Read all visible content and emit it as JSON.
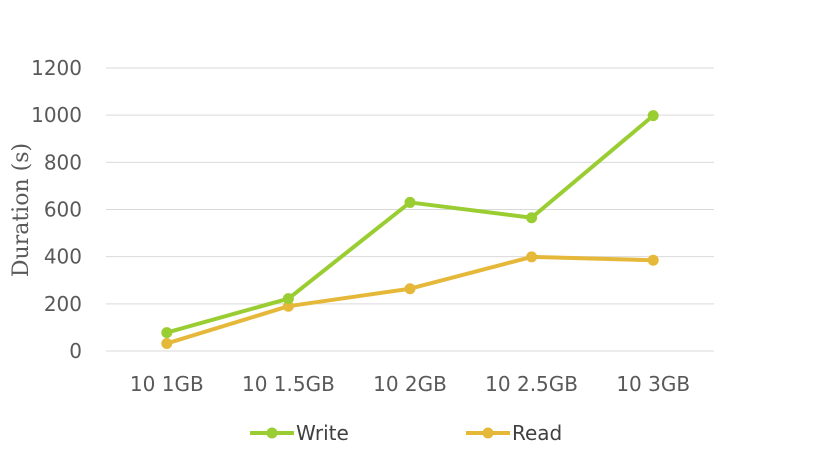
{
  "chart_data": {
    "type": "line",
    "title": "",
    "xlabel": "",
    "ylabel": "Duration (s)",
    "categories": [
      "10 1GB",
      "10 1.5GB",
      "10 2GB",
      "10 2.5GB",
      "10 3GB"
    ],
    "series": [
      {
        "name": "Write",
        "color": "#9acd32",
        "values": [
          78,
          222,
          630,
          565,
          998
        ]
      },
      {
        "name": "Read",
        "color": "#e6b83a",
        "values": [
          32,
          190,
          264,
          399,
          385
        ]
      }
    ],
    "ylim": [
      0,
      1200
    ],
    "yticks": [
      "0",
      "200",
      "400",
      "600",
      "800",
      "1000",
      "1200"
    ],
    "grid": true,
    "legend": "bottom"
  }
}
